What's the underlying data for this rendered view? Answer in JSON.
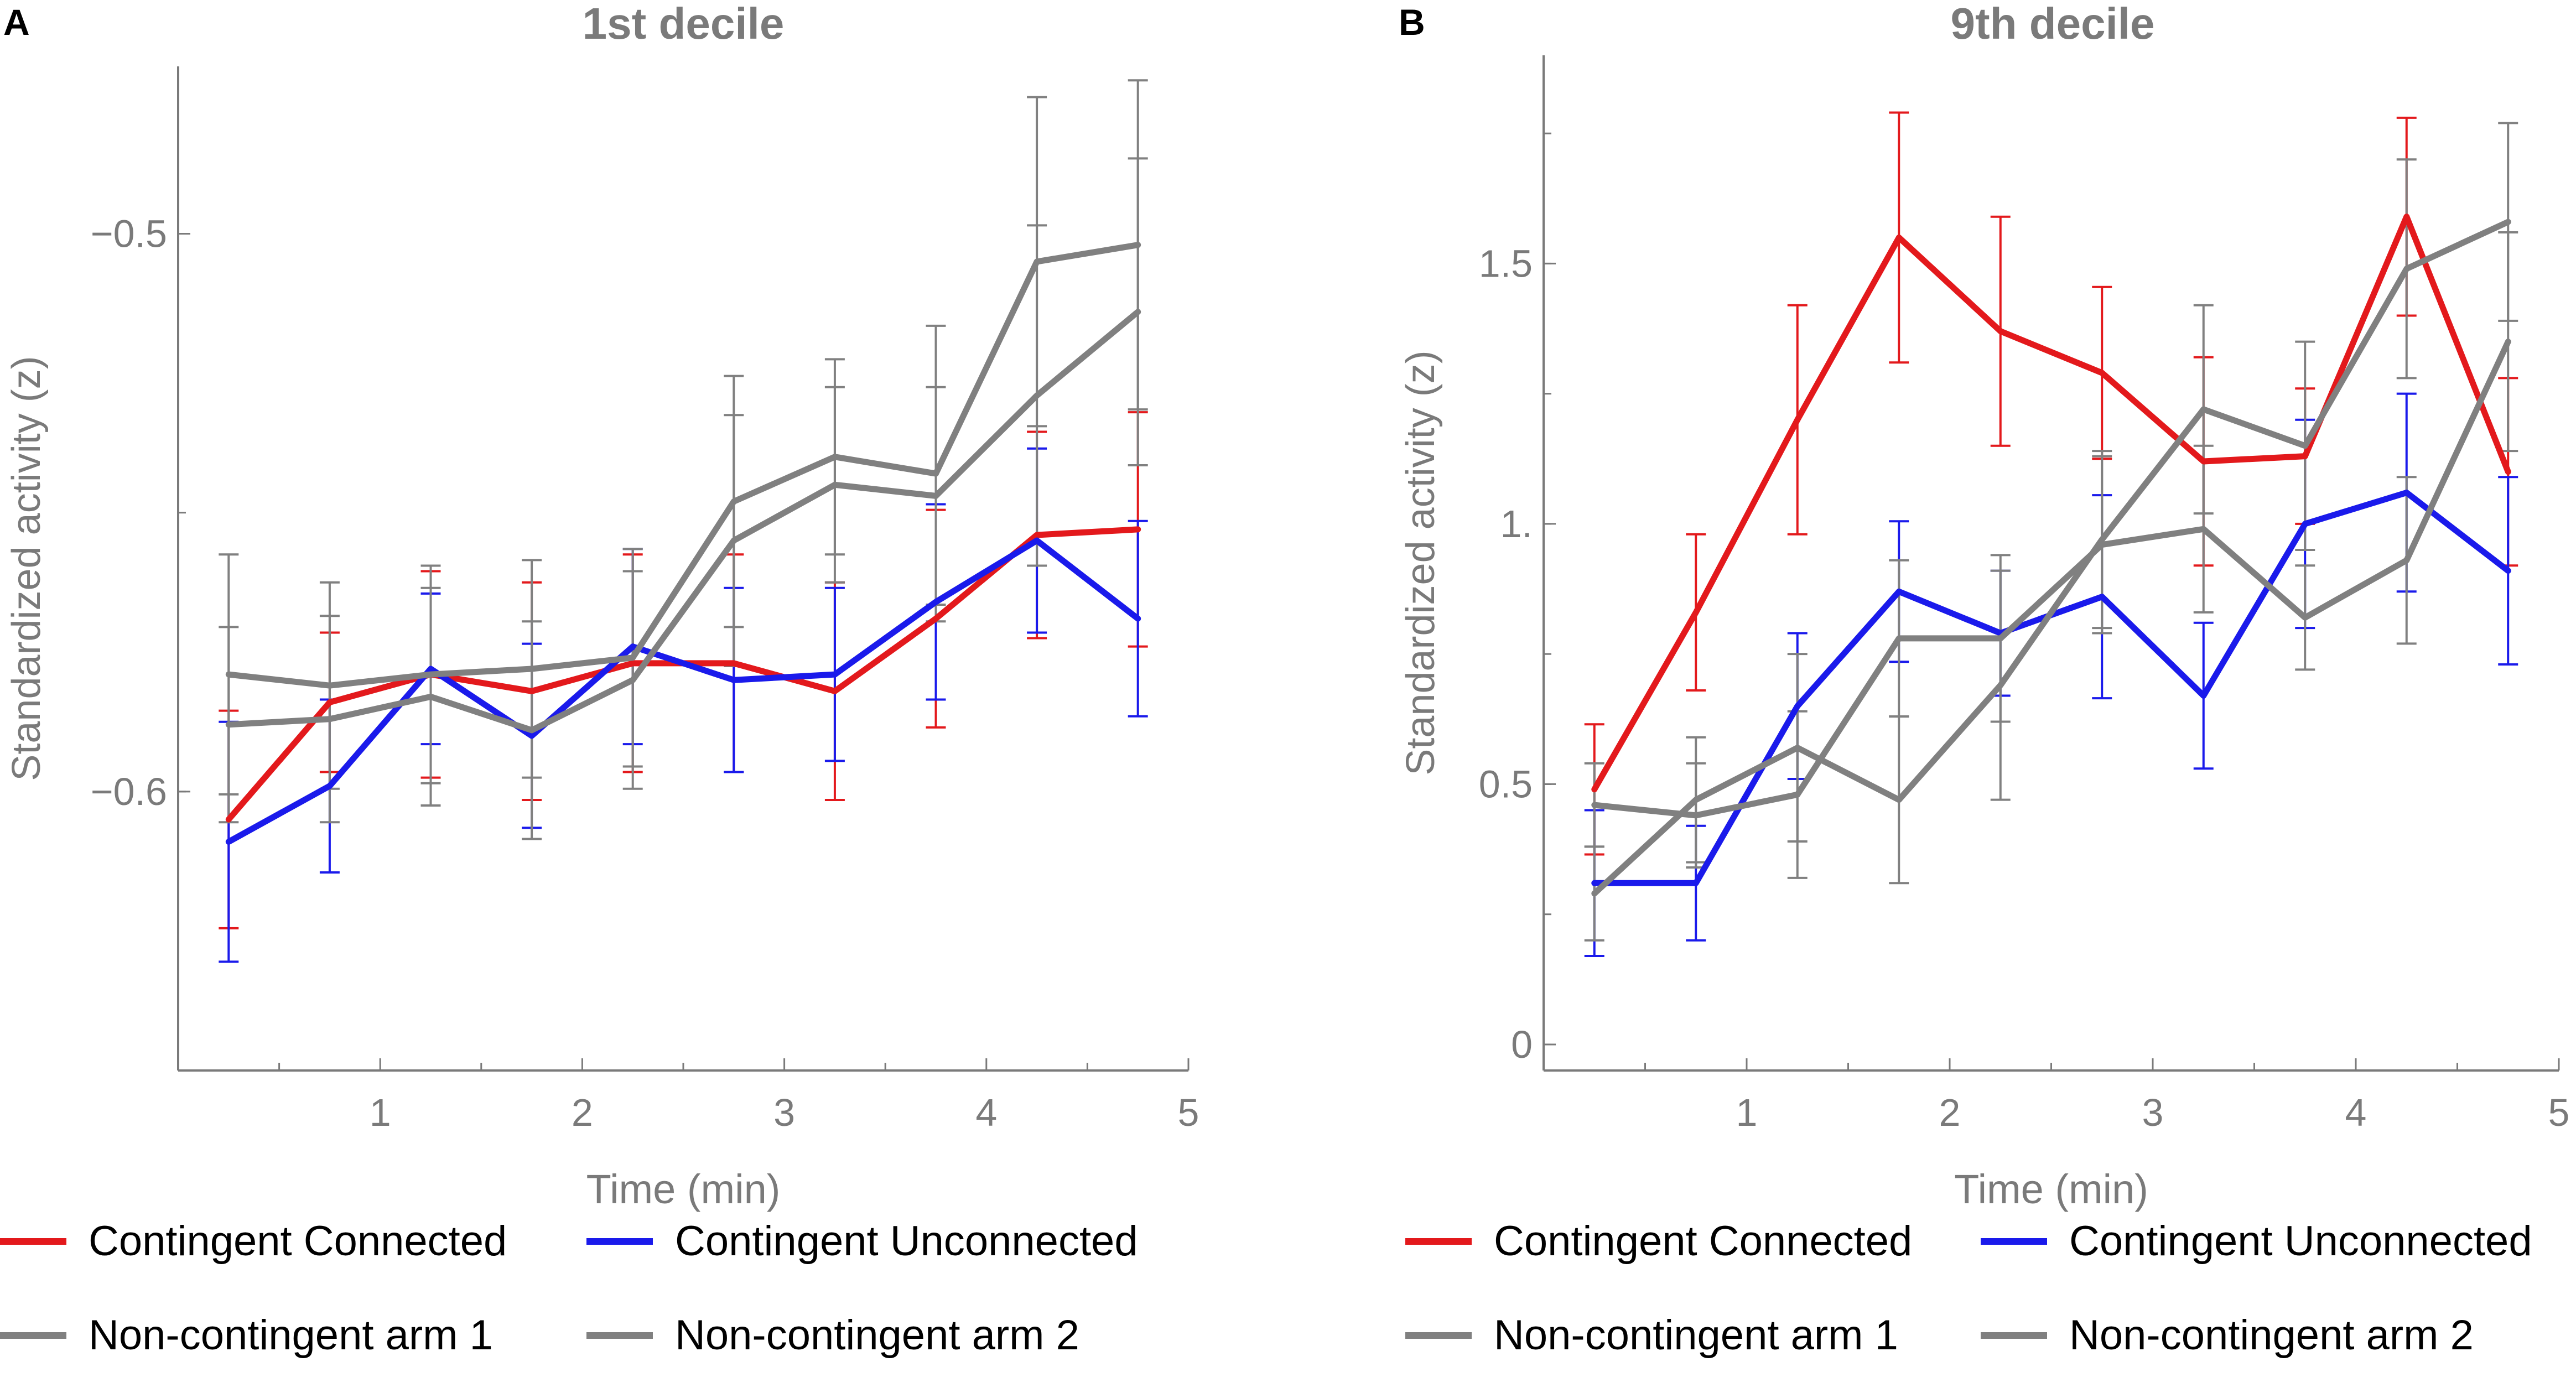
{
  "panels": [
    {
      "letter": "A",
      "chart_data": {
        "type": "line",
        "title": "1st decile",
        "xlabel": "Time (min)",
        "ylabel": "Standardized activity (z)",
        "xlim": [
          0,
          5
        ],
        "ylim": [
          -0.65,
          -0.47
        ],
        "xticks": [
          1,
          2,
          3,
          4,
          5
        ],
        "yticks": [
          -0.6,
          -0.5
        ],
        "ytick_labels": [
          "−0.6",
          "−0.5"
        ],
        "x": [
          0.25,
          0.75,
          1.25,
          1.75,
          2.25,
          2.75,
          3.25,
          3.75,
          4.25,
          4.75
        ],
        "series": [
          {
            "name": "Contingent Connected",
            "color": "#e3191c",
            "values": [
              -0.605,
              -0.584,
              -0.579,
              -0.582,
              -0.577,
              -0.577,
              -0.582,
              -0.569,
              -0.554,
              -0.553
            ],
            "err": [
              0.0195,
              0.0125,
              0.0185,
              0.0195,
              0.0195,
              0.0195,
              0.0195,
              0.0195,
              0.0185,
              0.021
            ]
          },
          {
            "name": "Contingent Unconnected",
            "color": "#1a1aeb",
            "values": [
              -0.609,
              -0.599,
              -0.578,
              -0.59,
              -0.574,
              -0.58,
              -0.579,
              -0.566,
              -0.555,
              -0.569
            ],
            "err": [
              0.0215,
              0.0155,
              0.0135,
              0.0165,
              0.0175,
              0.0165,
              0.0155,
              0.0175,
              0.0165,
              0.0175
            ]
          },
          {
            "name": "Non-contingent arm 1",
            "color": "#808080",
            "values": [
              -0.579,
              -0.581,
              -0.579,
              -0.578,
              -0.576,
              -0.548,
              -0.54,
              -0.543,
              -0.505,
              -0.502
            ],
            "err": [
              0.0215,
              0.0185,
              0.0195,
              0.0195,
              0.0195,
              0.0225,
              0.0175,
              0.0265,
              0.0295,
              0.0295
            ]
          },
          {
            "name": "Non-contingent arm 2",
            "color": "#808080",
            "values": [
              -0.588,
              -0.587,
              -0.583,
              -0.589,
              -0.58,
              -0.555,
              -0.545,
              -0.547,
              -0.529,
              -0.514
            ],
            "err": [
              0.0175,
              0.0185,
              0.0195,
              0.0195,
              0.0195,
              0.0225,
              0.0175,
              0.0195,
              0.0305,
              0.0275
            ]
          }
        ],
        "legend_position": "bottom"
      }
    },
    {
      "letter": "B",
      "chart_data": {
        "type": "line",
        "title": "9th decile",
        "xlabel": "Time (min)",
        "ylabel": "Standardized activity (z)",
        "xlim": [
          0,
          5
        ],
        "ylim": [
          -0.05,
          1.9
        ],
        "xticks": [
          1,
          2,
          3,
          4,
          5
        ],
        "yticks": [
          0,
          0.5,
          1.0,
          1.5
        ],
        "ytick_labels": [
          "0",
          "0.5",
          "1.",
          "1.5"
        ],
        "x": [
          0.25,
          0.75,
          1.25,
          1.75,
          2.25,
          2.75,
          3.25,
          3.75,
          4.25,
          4.75
        ],
        "series": [
          {
            "name": "Contingent Connected",
            "color": "#e3191c",
            "values": [
              0.49,
              0.83,
              1.2,
              1.55,
              1.37,
              1.29,
              1.12,
              1.13,
              1.59,
              1.1
            ],
            "err": [
              0.125,
              0.15,
              0.22,
              0.24,
              0.22,
              0.165,
              0.2,
              0.13,
              0.19,
              0.18
            ]
          },
          {
            "name": "Contingent Unconnected",
            "color": "#1a1aeb",
            "values": [
              0.31,
              0.31,
              0.65,
              0.87,
              0.79,
              0.86,
              0.67,
              1.0,
              1.06,
              0.91
            ],
            "err": [
              0.14,
              0.11,
              0.14,
              0.135,
              0.12,
              0.195,
              0.14,
              0.2,
              0.19,
              0.18
            ]
          },
          {
            "name": "Non-contingent arm 1",
            "color": "#808080",
            "values": [
              0.46,
              0.44,
              0.48,
              0.78,
              0.78,
              0.96,
              0.99,
              0.82,
              0.93,
              1.35
            ],
            "err": [
              0.08,
              0.1,
              0.16,
              0.15,
              0.16,
              0.17,
              0.16,
              0.1,
              0.16,
              0.21
            ]
          },
          {
            "name": "Non-contingent arm 2",
            "color": "#808080",
            "values": [
              0.29,
              0.47,
              0.57,
              0.47,
              0.69,
              0.97,
              1.22,
              1.15,
              1.49,
              1.58
            ],
            "err": [
              0.09,
              0.12,
              0.18,
              0.16,
              0.22,
              0.17,
              0.2,
              0.2,
              0.21,
              0.19
            ]
          }
        ],
        "legend_position": "bottom"
      }
    }
  ]
}
